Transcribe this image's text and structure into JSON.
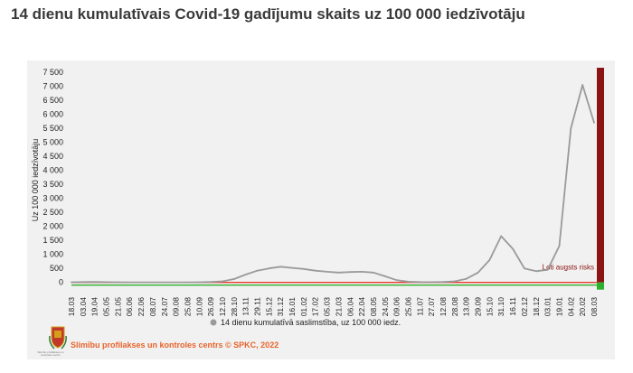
{
  "title": "14 dienu kumulatīvais Covid-19 gadījumu skaits uz 100 000 iedzīvotāju",
  "footer": {
    "source": "Slimību profilakses un kontroles centrs © SPKC, 2022",
    "logo_caption": "Slimību profilakses un kontroles centrs"
  },
  "colors": {
    "series": "#9a9a9a",
    "threshold_line": "#e63a2e",
    "baseline_green": "#2db02d",
    "very_high_band": "#8b1414",
    "footer_text": "#e8632b"
  },
  "chart_data": {
    "type": "line",
    "ylabel": "Uz 100 000 iedzīvotāju",
    "ylim": [
      -300,
      7600
    ],
    "yticks": [
      0,
      500,
      1000,
      1500,
      2000,
      2500,
      3000,
      3500,
      4000,
      4500,
      5000,
      5500,
      6000,
      6500,
      7000,
      7500
    ],
    "ytick_labels": [
      "0",
      "500",
      "1 000",
      "1 500",
      "2 000",
      "2 500",
      "3 000",
      "3 500",
      "4 000",
      "4 500",
      "5 000",
      "5 500",
      "6 000",
      "6 500",
      "7 000",
      "7 500"
    ],
    "x_labels": [
      "18.03",
      "03.04",
      "19.04",
      "05.05",
      "21.05",
      "06.06",
      "22.06",
      "08.07",
      "24.07",
      "09.08",
      "25.08",
      "10.09",
      "26.09",
      "12.10",
      "28.10",
      "13.11",
      "29.11",
      "15.12",
      "31.12",
      "16.01",
      "01.02",
      "17.02",
      "05.03",
      "21.03",
      "06.04",
      "22.04",
      "08.05",
      "24.05",
      "09.06",
      "25.06",
      "11.07",
      "27.07",
      "12.08",
      "28.08",
      "13.09",
      "29.09",
      "15.10",
      "31.10",
      "16.11",
      "02.12",
      "18.12",
      "03.01",
      "19.01",
      "04.02",
      "20.02",
      "08.03"
    ],
    "threshold_label": "Ļoti augsts risks",
    "threshold_value": 0,
    "legend": {
      "label": "14 dienu kumulatīvā saslimstība, uz 100 000 iedz.",
      "position": "bottom"
    },
    "series": [
      {
        "name": "14 dienu kumulatīvā saslimstība, uz 100 000 iedz.",
        "values": [
          5,
          12,
          15,
          10,
          5,
          3,
          2,
          2,
          2,
          2,
          3,
          5,
          15,
          40,
          120,
          280,
          420,
          500,
          560,
          520,
          480,
          420,
          380,
          350,
          370,
          380,
          350,
          220,
          80,
          25,
          12,
          10,
          15,
          40,
          130,
          350,
          800,
          1650,
          1200,
          500,
          400,
          450,
          1300,
          5500,
          7050,
          5700
        ]
      }
    ]
  }
}
